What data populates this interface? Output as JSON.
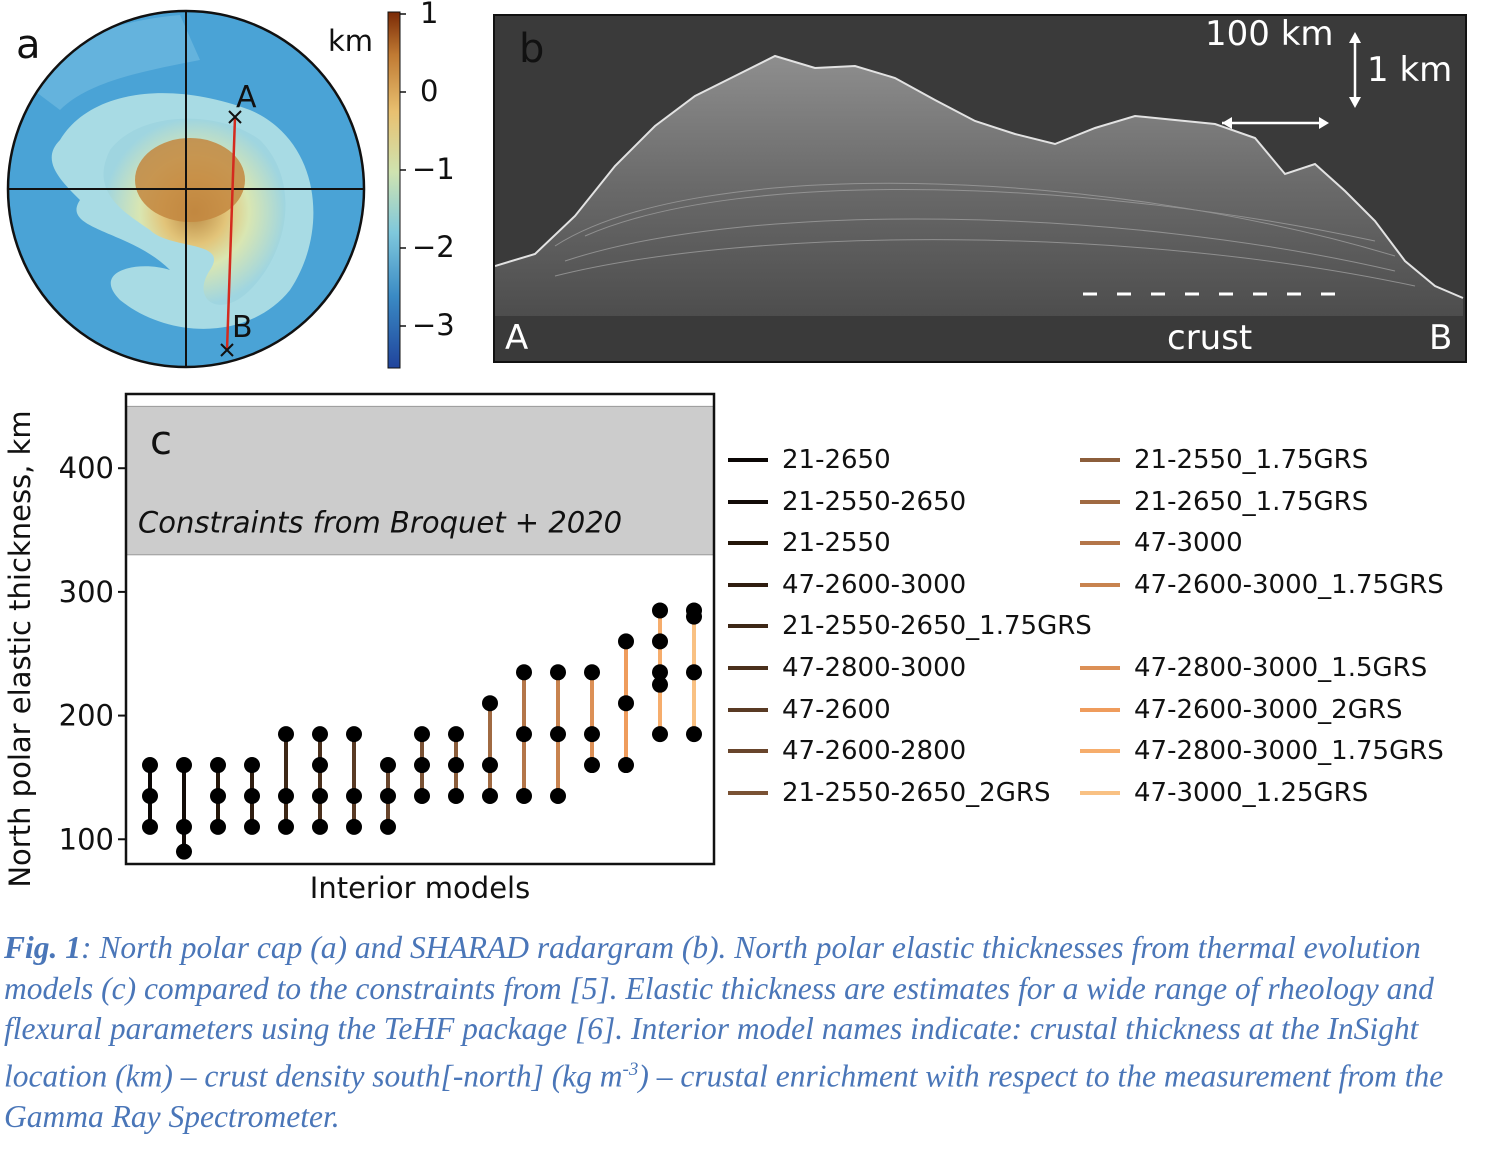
{
  "panel_a": {
    "label": "a",
    "point_a": "A",
    "point_b": "B",
    "colorbar_unit": "km",
    "colorbar_ticks": [
      "1",
      "0",
      "−1",
      "−2",
      "−3"
    ],
    "colorbar_colors": [
      "#7a2a06",
      "#c07a33",
      "#e8c070",
      "#cfe3b0",
      "#7fc8dc",
      "#3a8ac4",
      "#20449c"
    ]
  },
  "panel_b": {
    "label": "b",
    "scale_h": "100 km",
    "scale_v": "1 km",
    "left": "A",
    "right": "B",
    "crust_label": "crust"
  },
  "chart_data": {
    "type": "scatter",
    "label": "c",
    "xlabel": "Interior models",
    "ylabel": "North polar elastic thickness, km",
    "ylim": [
      80,
      460
    ],
    "yticks": [
      100,
      200,
      300,
      400
    ],
    "grid": false,
    "constraint_band": {
      "range": [
        330,
        450
      ],
      "text": "Constraints from Broquet + 2020"
    },
    "series": [
      {
        "name": "21-2650",
        "color": "#0b0705",
        "values": [
          110,
          135,
          160
        ]
      },
      {
        "name": "21-2550-2650",
        "color": "#120b07",
        "values": [
          90,
          110,
          160
        ]
      },
      {
        "name": "21-2550",
        "color": "#241609",
        "values": [
          110,
          135,
          160
        ]
      },
      {
        "name": "47-2600-3000",
        "color": "#2f1d0f",
        "values": [
          110,
          135,
          160
        ]
      },
      {
        "name": "21-2550-2650_1.75GRS",
        "color": "#3d2716",
        "values": [
          110,
          135,
          185
        ]
      },
      {
        "name": "47-2800-3000",
        "color": "#4a301c",
        "values": [
          110,
          135,
          160,
          185
        ]
      },
      {
        "name": "47-2600",
        "color": "#593a24",
        "values": [
          110,
          135,
          185
        ]
      },
      {
        "name": "47-2600-2800",
        "color": "#68452c",
        "values": [
          110,
          135,
          160
        ]
      },
      {
        "name": "21-2550-2650_2GRS",
        "color": "#7a5234",
        "values": [
          135,
          160,
          185
        ]
      },
      {
        "name": "21-2550_1.75GRS",
        "color": "#8c5e3b",
        "values": [
          135,
          160,
          185
        ]
      },
      {
        "name": "21-2650_1.75GRS",
        "color": "#a06a42",
        "values": [
          135,
          160,
          210
        ]
      },
      {
        "name": "47-3000",
        "color": "#b47649",
        "values": [
          135,
          185,
          235
        ]
      },
      {
        "name": "47-2600-3000_1.75GRS",
        "color": "#c8834f",
        "values": [
          135,
          185,
          235
        ]
      },
      {
        "name": "47-2800-3000_1.5GRS",
        "color": "#dc9056",
        "values": [
          160,
          185,
          235
        ]
      },
      {
        "name": "47-2600-3000_2GRS",
        "color": "#ef9c5c",
        "values": [
          160,
          210,
          260
        ]
      },
      {
        "name": "47-2800-3000_1.75GRS",
        "color": "#f6ad6c",
        "values": [
          185,
          225,
          235,
          260,
          285
        ]
      },
      {
        "name": "47-3000_1.25GRS",
        "color": "#f9c183",
        "values": [
          185,
          235,
          280,
          285
        ]
      }
    ]
  },
  "caption": {
    "fig_label": "Fig. 1",
    "text": ": North polar cap (a) and SHARAD radargram (b). North polar elastic thicknesses from thermal evolution models (c) compared to the constraints from [5]. Elastic thickness are estimates for a wide range of rheology and flexural parameters using the TeHF package [6]. Interior model names indicate: crustal thickness at the InSight location (km) – crust density south[-north] (kg m",
    "superscript": "-3",
    "text_end": ") – crustal enrichment with respect to the measurement from the Gamma Ray Spectrometer."
  }
}
